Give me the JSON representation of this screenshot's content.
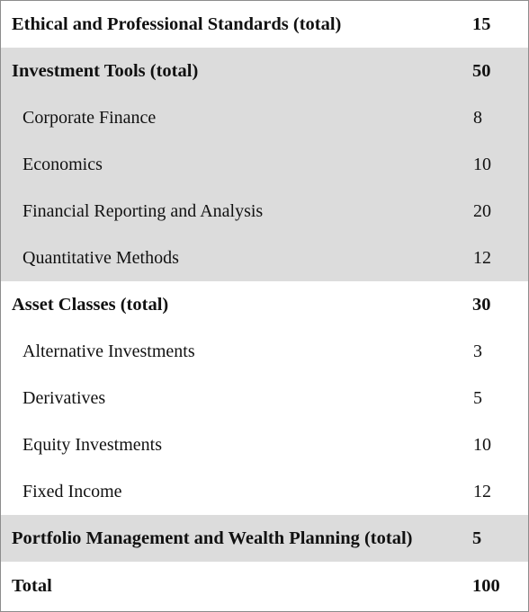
{
  "table": {
    "rows": [
      {
        "topic": "Ethical and Professional Standards (total)",
        "weight": "15",
        "kind": "section",
        "shaded": false
      },
      {
        "topic": "Investment Tools (total)",
        "weight": "50",
        "kind": "section",
        "shaded": true
      },
      {
        "topic": "Corporate Finance",
        "weight": "8",
        "kind": "sub",
        "shaded": true
      },
      {
        "topic": "Economics",
        "weight": "10",
        "kind": "sub",
        "shaded": true
      },
      {
        "topic": "Financial Reporting and Analysis",
        "weight": "20",
        "kind": "sub",
        "shaded": true
      },
      {
        "topic": "Quantitative Methods",
        "weight": "12",
        "kind": "sub",
        "shaded": true
      },
      {
        "topic": "Asset Classes (total)",
        "weight": "30",
        "kind": "section",
        "shaded": false
      },
      {
        "topic": "Alternative Investments",
        "weight": "3",
        "kind": "sub",
        "shaded": false
      },
      {
        "topic": "Derivatives",
        "weight": "5",
        "kind": "sub",
        "shaded": false
      },
      {
        "topic": "Equity Investments",
        "weight": "10",
        "kind": "sub",
        "shaded": false
      },
      {
        "topic": "Fixed Income",
        "weight": "12",
        "kind": "sub",
        "shaded": false
      },
      {
        "topic": "Portfolio Management and Wealth Planning (total)",
        "weight": "5",
        "kind": "section",
        "shaded": true
      },
      {
        "topic": "Total",
        "weight": "100",
        "kind": "section",
        "shaded": false
      }
    ],
    "colors": {
      "shade": "#dcdcdc",
      "background": "#ffffff",
      "text": "#111111",
      "border": "#8c8c8c"
    }
  }
}
